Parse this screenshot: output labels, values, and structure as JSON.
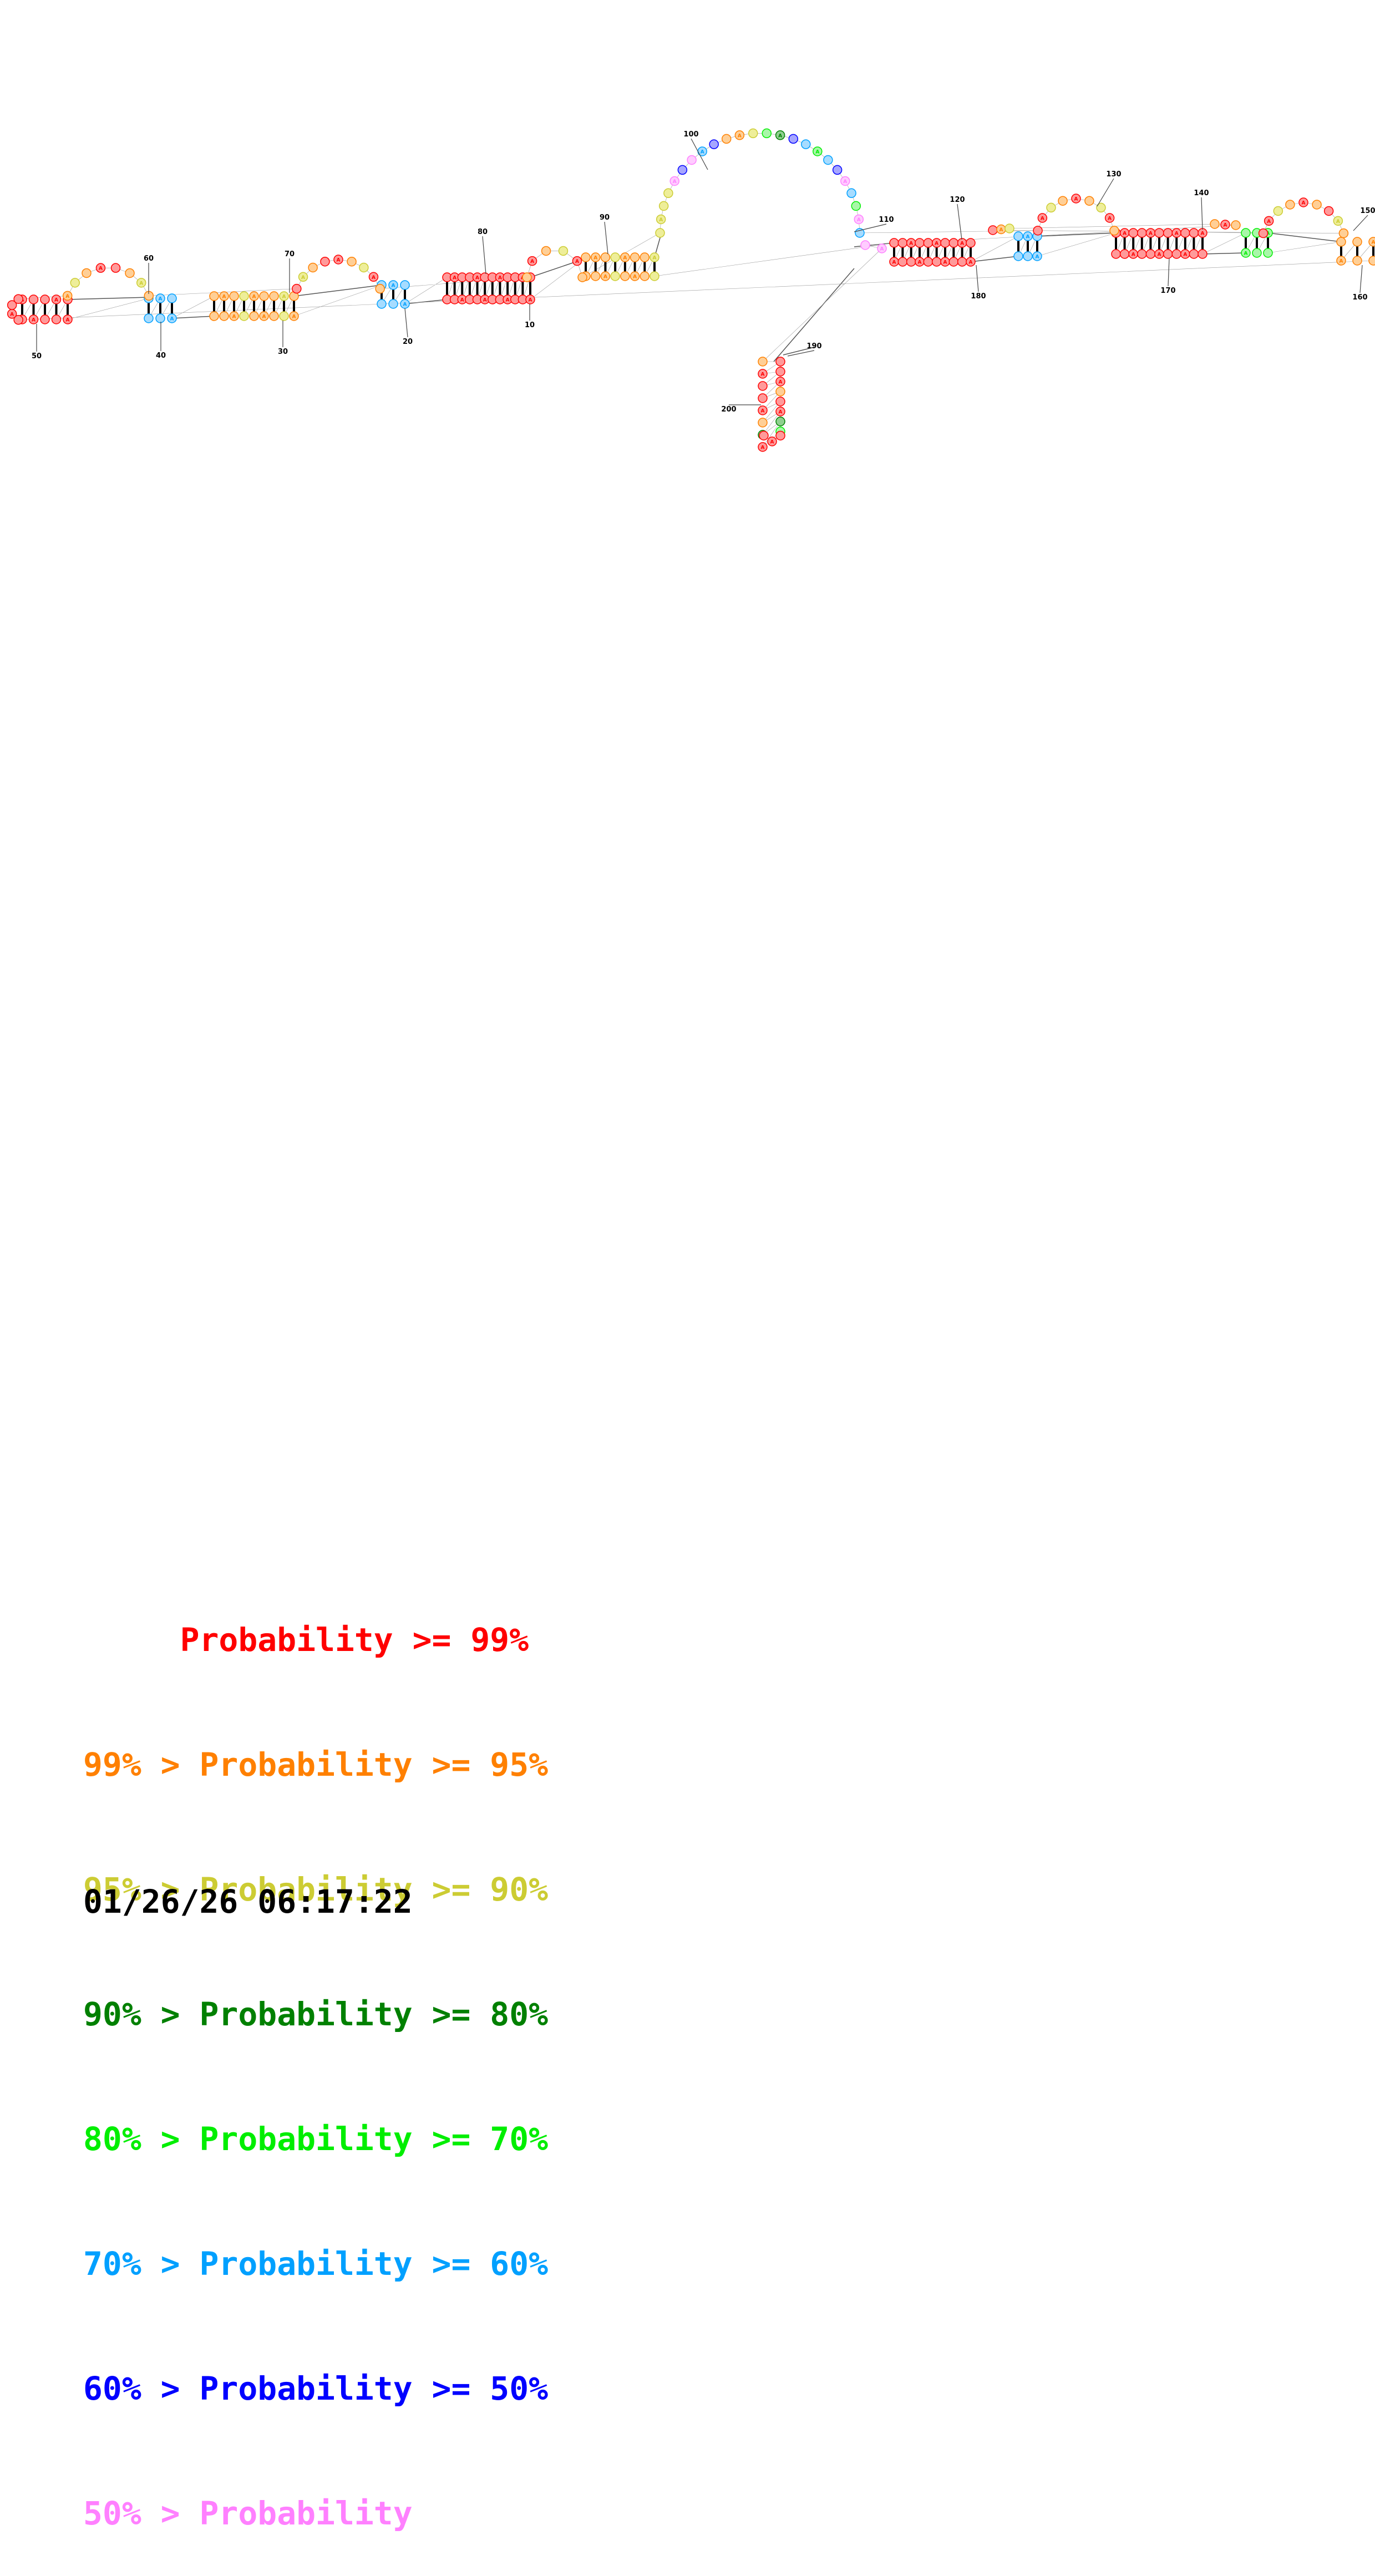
{
  "structure": {
    "position_labels": [
      "10",
      "20",
      "30",
      "40",
      "50",
      "60",
      "70",
      "80",
      "90",
      "100",
      "110",
      "120",
      "130",
      "140",
      "150",
      "160",
      "170",
      "180",
      "190",
      "200"
    ],
    "base_letters": [
      "A",
      "A",
      "A",
      "A",
      "A",
      "A",
      "A",
      "A",
      "A",
      "A",
      "A",
      "A",
      "A",
      "A",
      "A",
      "A",
      "A",
      "A",
      "A",
      "A"
    ]
  },
  "legend": [
    {
      "text": "     Probability >= 99%",
      "color": "#ff0000"
    },
    {
      "text": "99% > Probability >= 95%",
      "color": "#ff8000"
    },
    {
      "text": "95% > Probability >= 90%",
      "color": "#cccc33"
    },
    {
      "text": "90% > Probability >= 80%",
      "color": "#008000"
    },
    {
      "text": "80% > Probability >= 70%",
      "color": "#00ee00"
    },
    {
      "text": "70% > Probability >= 60%",
      "color": "#00a0ff"
    },
    {
      "text": "60% > Probability >= 50%",
      "color": "#0000ff"
    },
    {
      "text": "50% > Probability",
      "color": "#ff80ff"
    }
  ],
  "timestamp": "01/26/26 06:17:22"
}
